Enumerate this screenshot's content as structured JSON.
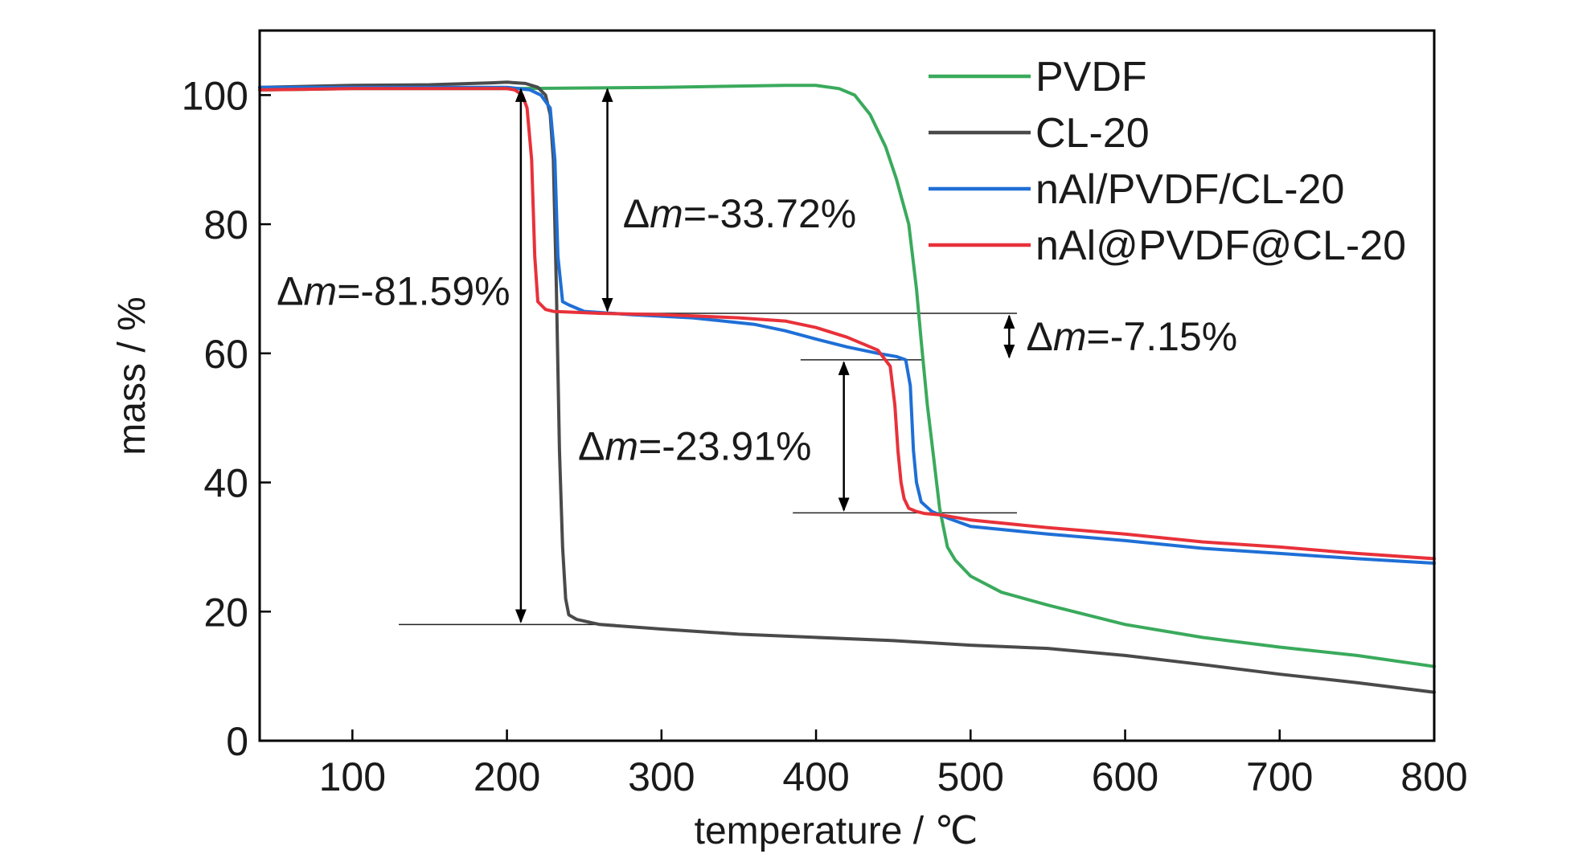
{
  "chart_data": {
    "type": "line",
    "title": "",
    "xlabel": "temperature / ℃",
    "ylabel": "mass / %",
    "xlim": [
      40,
      800
    ],
    "ylim": [
      0,
      110
    ],
    "xticks": [
      100,
      200,
      300,
      400,
      500,
      600,
      700,
      800
    ],
    "yticks": [
      0,
      20,
      40,
      60,
      80,
      100
    ],
    "grid": false,
    "legend_position": "top-right",
    "series": [
      {
        "name": "PVDF",
        "color": "#3aaa5c",
        "x": [
          40,
          100,
          200,
          300,
          380,
          400,
          415,
          425,
          435,
          445,
          452,
          460,
          465,
          468,
          472,
          476,
          480,
          485,
          490,
          500,
          520,
          550,
          600,
          650,
          700,
          750,
          800
        ],
        "y": [
          100.8,
          101.0,
          101.0,
          101.2,
          101.5,
          101.5,
          101.0,
          100.0,
          97.0,
          92.0,
          87.0,
          80.0,
          70.0,
          62.0,
          52.0,
          44.0,
          36.0,
          30.0,
          28.0,
          25.5,
          23.0,
          21.0,
          18.0,
          16.0,
          14.5,
          13.2,
          11.5
        ]
      },
      {
        "name": "CL-20",
        "color": "#4a4a4a",
        "x": [
          40,
          100,
          150,
          190,
          200,
          212,
          220,
          225,
          228,
          230,
          232,
          234,
          236,
          238,
          240,
          245,
          260,
          300,
          350,
          400,
          450,
          500,
          550,
          600,
          650,
          700,
          750,
          800
        ],
        "y": [
          101.2,
          101.5,
          101.6,
          101.9,
          102.0,
          101.8,
          101.2,
          100.0,
          97.0,
          90.0,
          70.0,
          45.0,
          30.0,
          22.0,
          19.5,
          18.8,
          18.0,
          17.3,
          16.5,
          16.0,
          15.5,
          14.8,
          14.3,
          13.2,
          11.8,
          10.3,
          9.0,
          7.5
        ]
      },
      {
        "name": "nAl/PVDF/CL-20",
        "color": "#1f6fd6",
        "x": [
          40,
          100,
          150,
          200,
          215,
          222,
          228,
          231,
          233,
          236,
          240,
          250,
          280,
          320,
          360,
          380,
          400,
          420,
          440,
          452,
          458,
          461,
          463,
          465,
          468,
          475,
          485,
          500,
          550,
          600,
          650,
          700,
          750,
          800
        ],
        "y": [
          101.2,
          101.2,
          101.2,
          101.2,
          100.8,
          100.0,
          98.0,
          90.0,
          75.0,
          68.0,
          67.5,
          66.5,
          66.0,
          65.5,
          64.5,
          63.5,
          62.2,
          61.0,
          60.0,
          59.5,
          59.0,
          55.0,
          45.0,
          40.0,
          37.0,
          35.5,
          34.5,
          33.2,
          32.0,
          31.0,
          29.8,
          29.0,
          28.2,
          27.5
        ]
      },
      {
        "name": "nAl@PVDF@CL-20",
        "color": "#e8313a",
        "x": [
          40,
          100,
          150,
          200,
          205,
          210,
          213,
          216,
          218,
          220,
          225,
          230,
          260,
          300,
          350,
          380,
          400,
          420,
          440,
          448,
          451,
          453,
          455,
          457,
          460,
          465,
          470,
          480,
          500,
          550,
          600,
          650,
          700,
          750,
          800
        ],
        "y": [
          100.8,
          101.0,
          101.0,
          101.0,
          100.8,
          100.0,
          98.0,
          90.0,
          75.0,
          68.0,
          66.8,
          66.5,
          66.2,
          66.0,
          65.5,
          65.0,
          64.0,
          62.5,
          60.5,
          58.0,
          52.0,
          45.0,
          40.0,
          37.5,
          36.0,
          35.5,
          35.2,
          35.0,
          34.2,
          33.0,
          32.0,
          30.8,
          30.0,
          29.0,
          28.2
        ]
      }
    ],
    "annotations": [
      {
        "prefix": "Δ",
        "symbol": "m",
        "value": "=-33.72%"
      },
      {
        "prefix": "Δ",
        "symbol": "m",
        "value": "=-81.59%"
      },
      {
        "prefix": "Δ",
        "symbol": "m",
        "value": "=-7.15%"
      },
      {
        "prefix": "Δ",
        "symbol": "m",
        "value": "=-23.91%"
      }
    ]
  }
}
